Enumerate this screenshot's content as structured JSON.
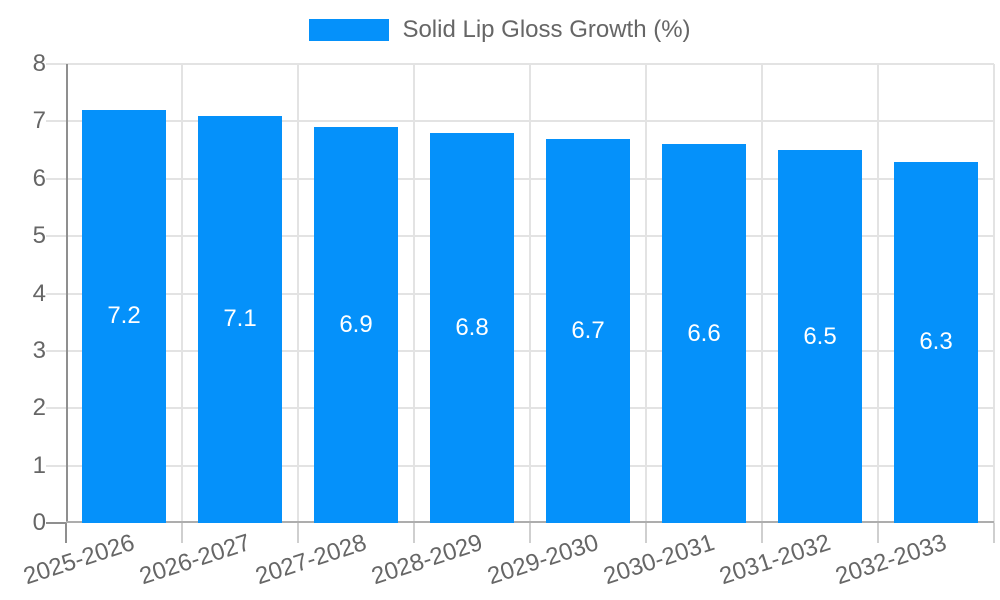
{
  "chart_data": {
    "type": "bar",
    "series_name": "Solid Lip Gloss Growth (%)",
    "categories": [
      "2025-2026",
      "2026-2027",
      "2027-2028",
      "2028-2029",
      "2029-2030",
      "2030-2031",
      "2031-2032",
      "2032-2033"
    ],
    "values": [
      7.2,
      7.1,
      6.9,
      6.8,
      6.7,
      6.6,
      6.5,
      6.3
    ],
    "y_ticks": [
      0,
      1,
      2,
      3,
      4,
      5,
      6,
      7,
      8
    ],
    "ylim": [
      0,
      8
    ],
    "grid": true,
    "legend_position": "top",
    "data_labels": "inside-center",
    "x_tick_rotation_deg": -18,
    "colors": {
      "bar": "#0591fa",
      "grid": "#e3e3e3",
      "axis_y": "#8f8f8f",
      "axis_x": "#adadad",
      "tick_bottom": "#cfcfcf",
      "tick_text": "#666666",
      "value_label": "#ffffff"
    }
  }
}
